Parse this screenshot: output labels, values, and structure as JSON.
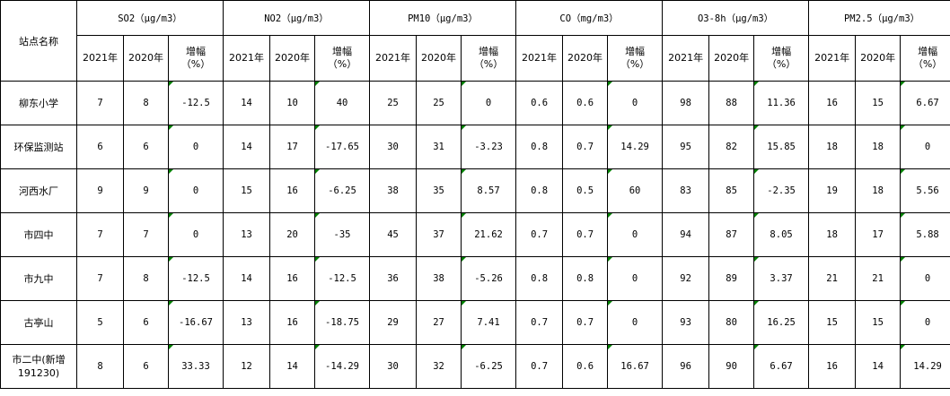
{
  "table": {
    "corner": "站点名称",
    "groups": [
      {
        "name": "SO2（μg/m3）",
        "columns": [
          "2021年",
          "2020年",
          "增幅\n（%）"
        ]
      },
      {
        "name": "NO2（μg/m3）",
        "columns": [
          "2021年",
          "2020年",
          "增幅\n（%）"
        ]
      },
      {
        "name": "PM10（μg/m3）",
        "columns": [
          "2021年",
          "2020年",
          "增幅\n（%）"
        ]
      },
      {
        "name": "CO（mg/m3）",
        "columns": [
          "2021年",
          "2020年",
          "增幅\n（%）"
        ]
      },
      {
        "name": "O3-8h（μg/m3）",
        "columns": [
          "2021年",
          "2020年",
          "增幅\n（%）"
        ]
      },
      {
        "name": "PM2.5（μg/m3）",
        "columns": [
          "2021年",
          "2020年",
          "增幅\n（%）"
        ]
      }
    ],
    "rows": [
      {
        "station": "柳东小学",
        "values": [
          7,
          8,
          -12.5,
          14,
          10,
          40,
          25,
          25,
          0,
          0.6,
          0.6,
          0,
          98,
          88,
          11.36,
          16,
          15,
          6.67
        ]
      },
      {
        "station": "环保监测站",
        "values": [
          6,
          6,
          0,
          14,
          17,
          -17.65,
          30,
          31,
          -3.23,
          0.8,
          0.7,
          14.29,
          95,
          82,
          15.85,
          18,
          18,
          0
        ]
      },
      {
        "station": "河西水厂",
        "values": [
          9,
          9,
          0,
          15,
          16,
          -6.25,
          38,
          35,
          8.57,
          0.8,
          0.5,
          60,
          83,
          85,
          -2.35,
          19,
          18,
          5.56
        ]
      },
      {
        "station": "市四中",
        "values": [
          7,
          7,
          0,
          13,
          20,
          -35,
          45,
          37,
          21.62,
          0.7,
          0.7,
          0,
          94,
          87,
          8.05,
          18,
          17,
          5.88
        ]
      },
      {
        "station": "市九中",
        "values": [
          7,
          8,
          -12.5,
          14,
          16,
          -12.5,
          36,
          38,
          -5.26,
          0.8,
          0.8,
          0,
          92,
          89,
          3.37,
          21,
          21,
          0
        ]
      },
      {
        "station": "古亭山",
        "values": [
          5,
          6,
          -16.67,
          13,
          16,
          -18.75,
          29,
          27,
          7.41,
          0.7,
          0.7,
          0,
          93,
          80,
          16.25,
          15,
          15,
          0
        ]
      },
      {
        "station": "市二中(新增191230)",
        "values": [
          8,
          6,
          33.33,
          12,
          14,
          -14.29,
          30,
          32,
          -6.25,
          0.7,
          0.6,
          16.67,
          96,
          90,
          6.67,
          16,
          14,
          14.29
        ]
      }
    ]
  }
}
